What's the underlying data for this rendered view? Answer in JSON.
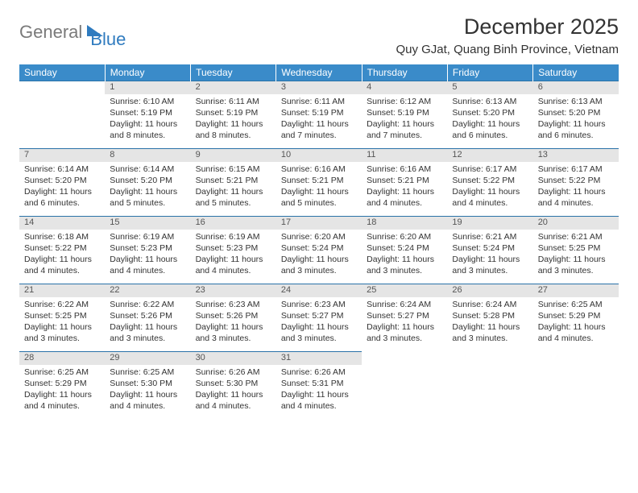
{
  "logo": {
    "general": "General",
    "blue": "Blue"
  },
  "title": "December 2025",
  "location": "Quy GJat, Quang Binh Province, Vietnam",
  "colors": {
    "header_bg": "#3a8bc9",
    "header_text": "#ffffff",
    "daynum_bg": "#e5e5e5",
    "daynum_border": "#2a72a8",
    "text": "#333333",
    "logo_gray": "#7a7a7a",
    "logo_blue": "#2f7bbf"
  },
  "dow": [
    "Sunday",
    "Monday",
    "Tuesday",
    "Wednesday",
    "Thursday",
    "Friday",
    "Saturday"
  ],
  "weeks": [
    {
      "nums": [
        "",
        "1",
        "2",
        "3",
        "4",
        "5",
        "6"
      ],
      "cells": [
        {
          "sunrise": "",
          "sunset": "",
          "daylight": ""
        },
        {
          "sunrise": "Sunrise: 6:10 AM",
          "sunset": "Sunset: 5:19 PM",
          "daylight": "Daylight: 11 hours and 8 minutes."
        },
        {
          "sunrise": "Sunrise: 6:11 AM",
          "sunset": "Sunset: 5:19 PM",
          "daylight": "Daylight: 11 hours and 8 minutes."
        },
        {
          "sunrise": "Sunrise: 6:11 AM",
          "sunset": "Sunset: 5:19 PM",
          "daylight": "Daylight: 11 hours and 7 minutes."
        },
        {
          "sunrise": "Sunrise: 6:12 AM",
          "sunset": "Sunset: 5:19 PM",
          "daylight": "Daylight: 11 hours and 7 minutes."
        },
        {
          "sunrise": "Sunrise: 6:13 AM",
          "sunset": "Sunset: 5:20 PM",
          "daylight": "Daylight: 11 hours and 6 minutes."
        },
        {
          "sunrise": "Sunrise: 6:13 AM",
          "sunset": "Sunset: 5:20 PM",
          "daylight": "Daylight: 11 hours and 6 minutes."
        }
      ]
    },
    {
      "nums": [
        "7",
        "8",
        "9",
        "10",
        "11",
        "12",
        "13"
      ],
      "cells": [
        {
          "sunrise": "Sunrise: 6:14 AM",
          "sunset": "Sunset: 5:20 PM",
          "daylight": "Daylight: 11 hours and 6 minutes."
        },
        {
          "sunrise": "Sunrise: 6:14 AM",
          "sunset": "Sunset: 5:20 PM",
          "daylight": "Daylight: 11 hours and 5 minutes."
        },
        {
          "sunrise": "Sunrise: 6:15 AM",
          "sunset": "Sunset: 5:21 PM",
          "daylight": "Daylight: 11 hours and 5 minutes."
        },
        {
          "sunrise": "Sunrise: 6:16 AM",
          "sunset": "Sunset: 5:21 PM",
          "daylight": "Daylight: 11 hours and 5 minutes."
        },
        {
          "sunrise": "Sunrise: 6:16 AM",
          "sunset": "Sunset: 5:21 PM",
          "daylight": "Daylight: 11 hours and 4 minutes."
        },
        {
          "sunrise": "Sunrise: 6:17 AM",
          "sunset": "Sunset: 5:22 PM",
          "daylight": "Daylight: 11 hours and 4 minutes."
        },
        {
          "sunrise": "Sunrise: 6:17 AM",
          "sunset": "Sunset: 5:22 PM",
          "daylight": "Daylight: 11 hours and 4 minutes."
        }
      ]
    },
    {
      "nums": [
        "14",
        "15",
        "16",
        "17",
        "18",
        "19",
        "20"
      ],
      "cells": [
        {
          "sunrise": "Sunrise: 6:18 AM",
          "sunset": "Sunset: 5:22 PM",
          "daylight": "Daylight: 11 hours and 4 minutes."
        },
        {
          "sunrise": "Sunrise: 6:19 AM",
          "sunset": "Sunset: 5:23 PM",
          "daylight": "Daylight: 11 hours and 4 minutes."
        },
        {
          "sunrise": "Sunrise: 6:19 AM",
          "sunset": "Sunset: 5:23 PM",
          "daylight": "Daylight: 11 hours and 4 minutes."
        },
        {
          "sunrise": "Sunrise: 6:20 AM",
          "sunset": "Sunset: 5:24 PM",
          "daylight": "Daylight: 11 hours and 3 minutes."
        },
        {
          "sunrise": "Sunrise: 6:20 AM",
          "sunset": "Sunset: 5:24 PM",
          "daylight": "Daylight: 11 hours and 3 minutes."
        },
        {
          "sunrise": "Sunrise: 6:21 AM",
          "sunset": "Sunset: 5:24 PM",
          "daylight": "Daylight: 11 hours and 3 minutes."
        },
        {
          "sunrise": "Sunrise: 6:21 AM",
          "sunset": "Sunset: 5:25 PM",
          "daylight": "Daylight: 11 hours and 3 minutes."
        }
      ]
    },
    {
      "nums": [
        "21",
        "22",
        "23",
        "24",
        "25",
        "26",
        "27"
      ],
      "cells": [
        {
          "sunrise": "Sunrise: 6:22 AM",
          "sunset": "Sunset: 5:25 PM",
          "daylight": "Daylight: 11 hours and 3 minutes."
        },
        {
          "sunrise": "Sunrise: 6:22 AM",
          "sunset": "Sunset: 5:26 PM",
          "daylight": "Daylight: 11 hours and 3 minutes."
        },
        {
          "sunrise": "Sunrise: 6:23 AM",
          "sunset": "Sunset: 5:26 PM",
          "daylight": "Daylight: 11 hours and 3 minutes."
        },
        {
          "sunrise": "Sunrise: 6:23 AM",
          "sunset": "Sunset: 5:27 PM",
          "daylight": "Daylight: 11 hours and 3 minutes."
        },
        {
          "sunrise": "Sunrise: 6:24 AM",
          "sunset": "Sunset: 5:27 PM",
          "daylight": "Daylight: 11 hours and 3 minutes."
        },
        {
          "sunrise": "Sunrise: 6:24 AM",
          "sunset": "Sunset: 5:28 PM",
          "daylight": "Daylight: 11 hours and 3 minutes."
        },
        {
          "sunrise": "Sunrise: 6:25 AM",
          "sunset": "Sunset: 5:29 PM",
          "daylight": "Daylight: 11 hours and 4 minutes."
        }
      ]
    },
    {
      "nums": [
        "28",
        "29",
        "30",
        "31",
        "",
        "",
        ""
      ],
      "cells": [
        {
          "sunrise": "Sunrise: 6:25 AM",
          "sunset": "Sunset: 5:29 PM",
          "daylight": "Daylight: 11 hours and 4 minutes."
        },
        {
          "sunrise": "Sunrise: 6:25 AM",
          "sunset": "Sunset: 5:30 PM",
          "daylight": "Daylight: 11 hours and 4 minutes."
        },
        {
          "sunrise": "Sunrise: 6:26 AM",
          "sunset": "Sunset: 5:30 PM",
          "daylight": "Daylight: 11 hours and 4 minutes."
        },
        {
          "sunrise": "Sunrise: 6:26 AM",
          "sunset": "Sunset: 5:31 PM",
          "daylight": "Daylight: 11 hours and 4 minutes."
        },
        {
          "sunrise": "",
          "sunset": "",
          "daylight": ""
        },
        {
          "sunrise": "",
          "sunset": "",
          "daylight": ""
        },
        {
          "sunrise": "",
          "sunset": "",
          "daylight": ""
        }
      ]
    }
  ]
}
